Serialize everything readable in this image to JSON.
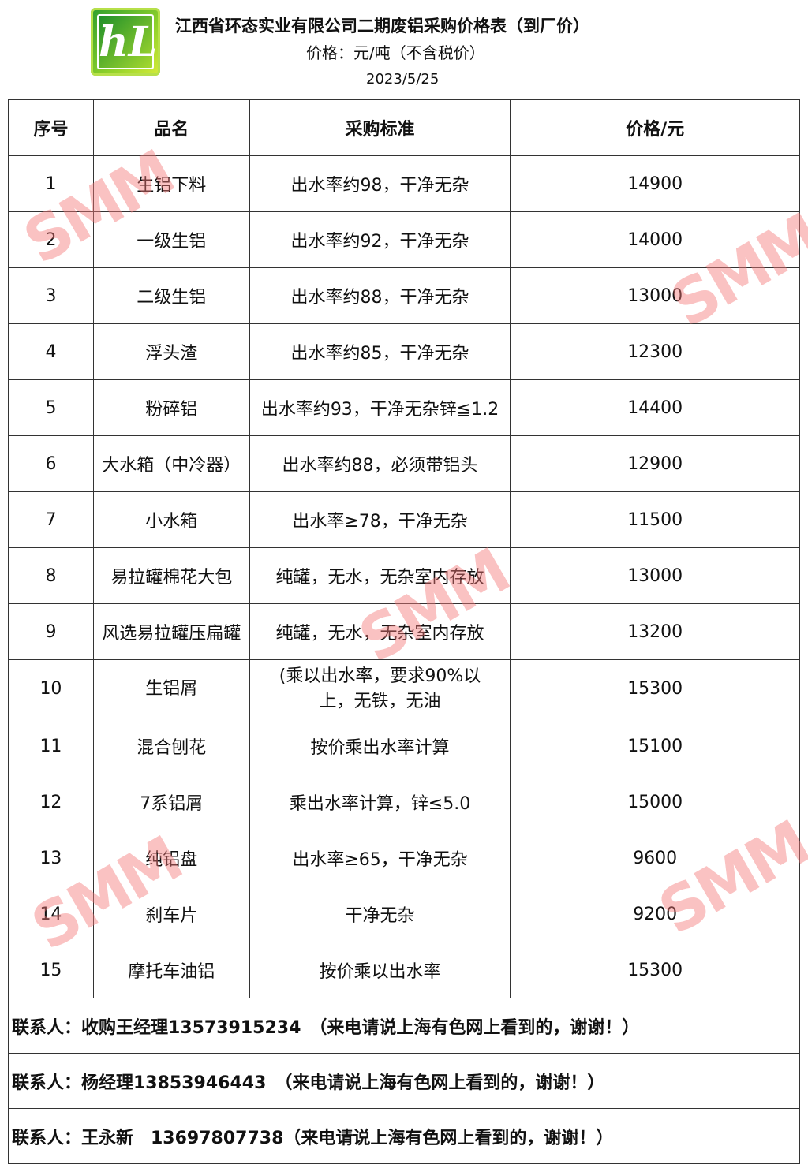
{
  "header": {
    "logo_text": "hL",
    "title": "江西省环态实业有限公司二期废铝采购价格表（到厂价）",
    "subtitle": "价格：元/吨（不含税价）",
    "date": "2023/5/25"
  },
  "table": {
    "columns": [
      "序号",
      "品名",
      "采购标准",
      "价格/元"
    ],
    "rows": [
      [
        "1",
        "生铝下料",
        "出水率约98，干净无杂",
        "14900"
      ],
      [
        "2",
        "一级生铝",
        "出水率约92，干净无杂",
        "14000"
      ],
      [
        "3",
        "二级生铝",
        "出水率约88，干净无杂",
        "13000"
      ],
      [
        "4",
        "浮头渣",
        "出水率约85，干净无杂",
        "12300"
      ],
      [
        "5",
        "粉碎铝",
        "出水率约93，干净无杂锌≦1.2",
        "14400"
      ],
      [
        "6",
        "大水箱（中冷器）",
        "出水率约88，必须带铝头",
        "12900"
      ],
      [
        "7",
        "小水箱",
        "出水率≥78，干净无杂",
        "11500"
      ],
      [
        "8",
        "易拉罐棉花大包",
        "纯罐，无水，无杂室内存放",
        "13000"
      ],
      [
        "9",
        "风选易拉罐压扁罐",
        "纯罐，无水，无杂室内存放",
        "13200"
      ],
      [
        "10",
        "生铝屑",
        "(乘以出水率，要求90%以上，无铁，无油",
        "15300"
      ],
      [
        "11",
        "混合刨花",
        "按价乘出水率计算",
        "15100"
      ],
      [
        "12",
        "7系铝屑",
        "乘出水率计算，锌≤5.0",
        "15000"
      ],
      [
        "13",
        "纯铝盘",
        "出水率≥65，干净无杂",
        "9600"
      ],
      [
        "14",
        "刹车片",
        "干净无杂",
        "9200"
      ],
      [
        "15",
        "摩托车油铝",
        "按价乘以出水率",
        "15300"
      ]
    ]
  },
  "contacts": [
    "联系人：收购王经理13573915234　（来电请说上海有色网上看到的，谢谢！）",
    "联系人：杨经理13853946443　（来电请说上海有色网上看到的，谢谢！）",
    "联系人：王永新　13697807738（来电请说上海有色网上看到的，谢谢！）"
  ],
  "watermark": "SMM",
  "colors": {
    "watermark": "#f57878",
    "logo": "#5cbf2a"
  }
}
